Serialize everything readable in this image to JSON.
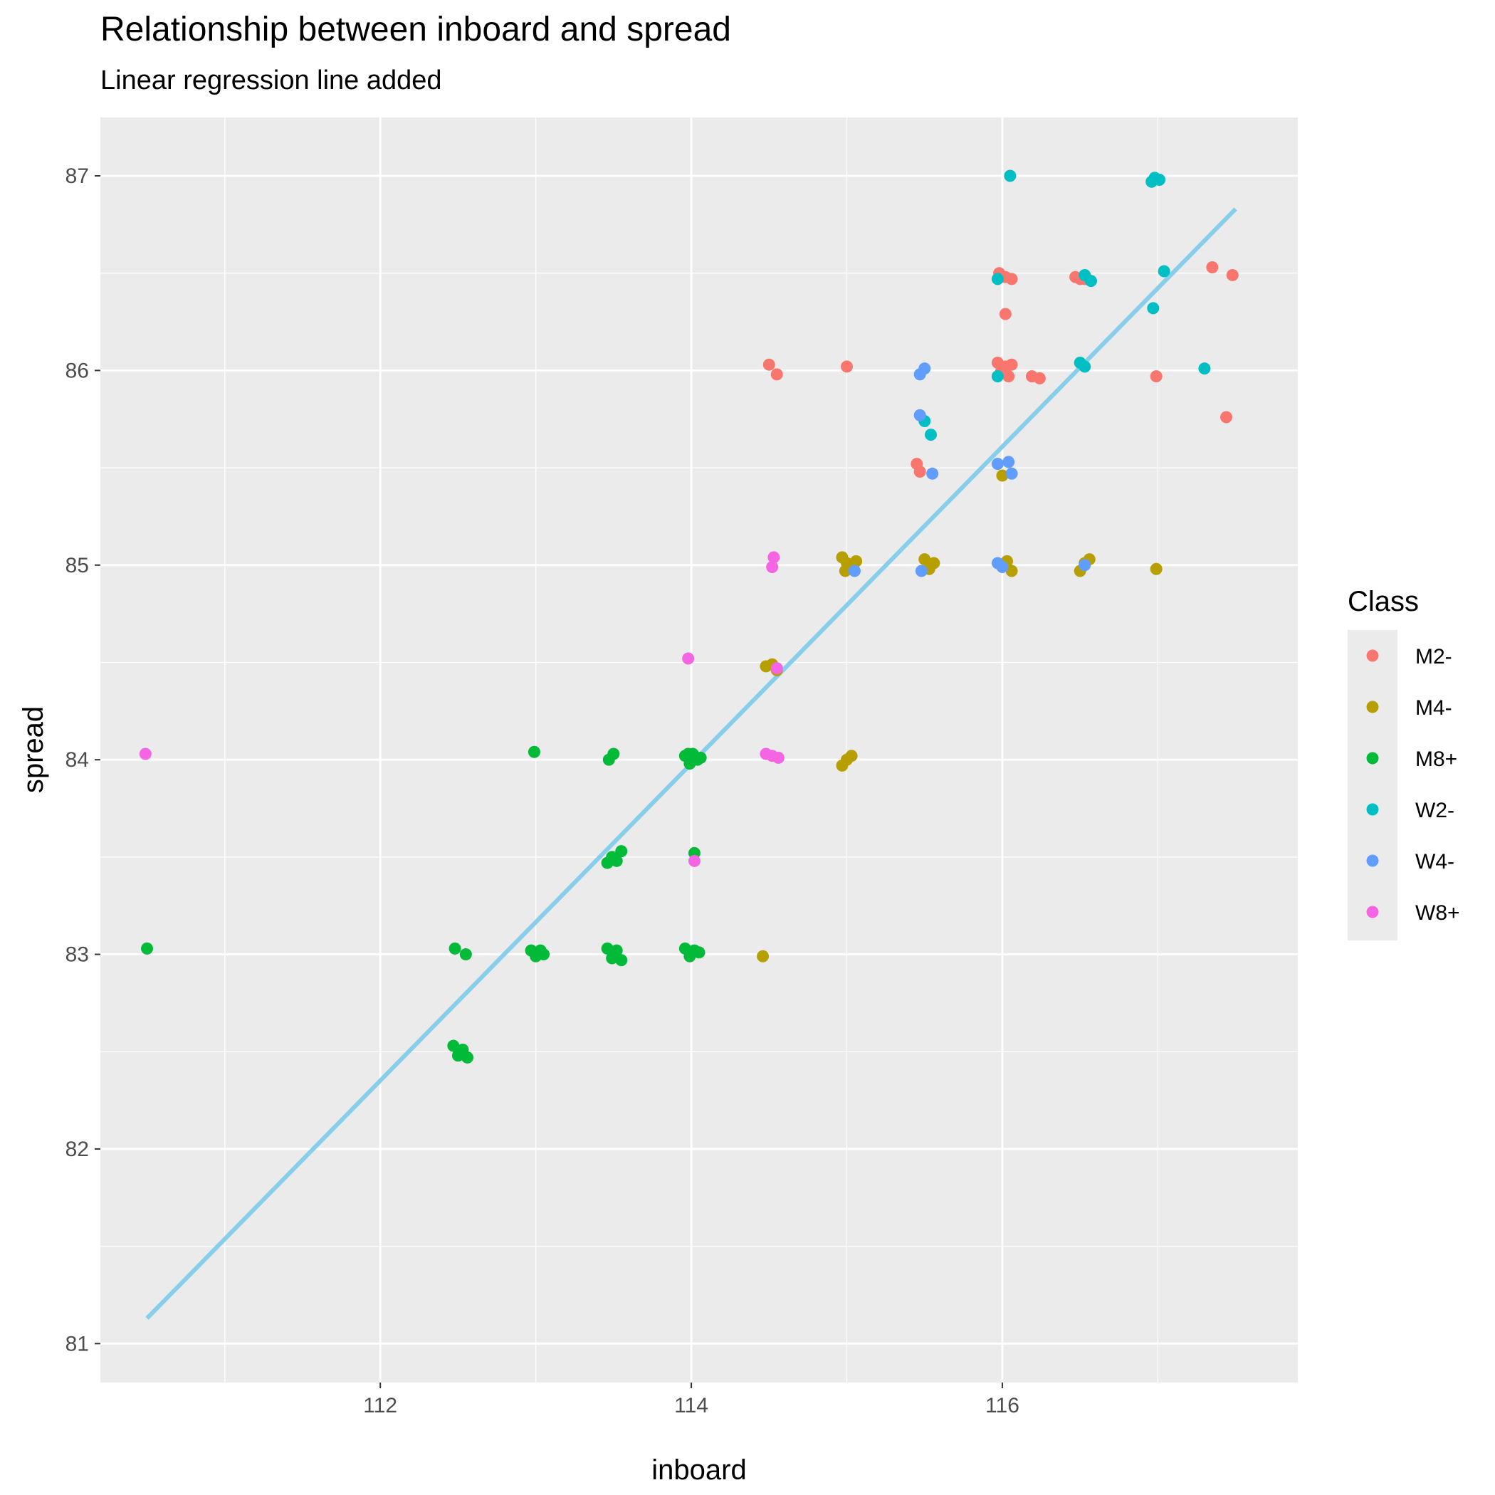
{
  "chart_data": {
    "type": "scatter",
    "title": "Relationship between inboard and spread",
    "subtitle": "Linear regression line added",
    "xlabel": "inboard",
    "ylabel": "spread",
    "xlim": [
      110.2,
      117.9
    ],
    "ylim": [
      80.8,
      87.3
    ],
    "x_ticks": [
      112,
      114,
      116
    ],
    "y_ticks": [
      81,
      82,
      83,
      84,
      85,
      86,
      87
    ],
    "grid": true,
    "legend": {
      "title": "Class",
      "position": "right"
    },
    "regression_line": {
      "color": "#87CEEB",
      "x": [
        110.5,
        117.5
      ],
      "y": [
        81.13,
        86.83
      ]
    },
    "series": [
      {
        "name": "M2-",
        "color": "#F8766D",
        "points": [
          [
            114.5,
            86.03
          ],
          [
            114.55,
            85.98
          ],
          [
            115.0,
            86.02
          ],
          [
            115.45,
            85.52
          ],
          [
            115.47,
            85.48
          ],
          [
            115.98,
            86.5
          ],
          [
            116.02,
            86.48
          ],
          [
            116.06,
            86.47
          ],
          [
            116.02,
            86.29
          ],
          [
            115.97,
            86.04
          ],
          [
            116.02,
            86.02
          ],
          [
            116.06,
            86.03
          ],
          [
            115.99,
            85.99
          ],
          [
            116.04,
            85.97
          ],
          [
            116.19,
            85.97
          ],
          [
            116.24,
            85.96
          ],
          [
            116.47,
            86.48
          ],
          [
            116.5,
            86.47
          ],
          [
            116.53,
            86.47
          ],
          [
            116.99,
            85.97
          ],
          [
            117.35,
            86.53
          ],
          [
            117.48,
            86.49
          ],
          [
            117.44,
            85.76
          ]
        ]
      },
      {
        "name": "M4-",
        "color": "#B79F00",
        "points": [
          [
            114.48,
            84.48
          ],
          [
            114.52,
            84.49
          ],
          [
            114.55,
            84.46
          ],
          [
            114.46,
            82.99
          ],
          [
            114.97,
            85.04
          ],
          [
            115.0,
            85.01
          ],
          [
            115.03,
            84.98
          ],
          [
            115.06,
            85.02
          ],
          [
            114.99,
            84.97
          ],
          [
            114.97,
            83.97
          ],
          [
            115.0,
            84.0
          ],
          [
            115.03,
            84.02
          ],
          [
            115.5,
            85.03
          ],
          [
            115.53,
            84.98
          ],
          [
            115.56,
            85.01
          ],
          [
            116.03,
            85.02
          ],
          [
            116.0,
            85.46
          ],
          [
            116.06,
            84.97
          ],
          [
            116.5,
            84.97
          ],
          [
            116.53,
            85.01
          ],
          [
            116.56,
            85.03
          ],
          [
            116.99,
            84.98
          ]
        ]
      },
      {
        "name": "M8+",
        "color": "#00BA38",
        "points": [
          [
            110.5,
            83.03
          ],
          [
            112.47,
            82.53
          ],
          [
            112.5,
            82.48
          ],
          [
            112.53,
            82.51
          ],
          [
            112.56,
            82.47
          ],
          [
            112.48,
            83.03
          ],
          [
            112.55,
            83.0
          ],
          [
            112.97,
            83.02
          ],
          [
            113.0,
            82.99
          ],
          [
            113.03,
            83.02
          ],
          [
            113.05,
            83.0
          ],
          [
            112.99,
            84.04
          ],
          [
            113.46,
            83.47
          ],
          [
            113.49,
            83.5
          ],
          [
            113.52,
            83.48
          ],
          [
            113.55,
            83.53
          ],
          [
            113.47,
            84.0
          ],
          [
            113.5,
            84.03
          ],
          [
            113.46,
            83.03
          ],
          [
            113.49,
            82.98
          ],
          [
            113.52,
            83.02
          ],
          [
            113.55,
            82.97
          ],
          [
            113.96,
            84.02
          ],
          [
            113.99,
            83.98
          ],
          [
            114.01,
            84.03
          ],
          [
            114.04,
            84.0
          ],
          [
            114.06,
            84.01
          ],
          [
            113.98,
            84.03
          ],
          [
            114.02,
            83.52
          ],
          [
            113.96,
            83.03
          ],
          [
            113.99,
            82.99
          ],
          [
            114.02,
            83.02
          ],
          [
            114.05,
            83.01
          ]
        ]
      },
      {
        "name": "W2-",
        "color": "#00BFC4",
        "points": [
          [
            116.05,
            87.0
          ],
          [
            116.98,
            86.99
          ],
          [
            117.01,
            86.98
          ],
          [
            116.96,
            86.97
          ],
          [
            115.97,
            86.47
          ],
          [
            116.53,
            86.49
          ],
          [
            116.57,
            86.46
          ],
          [
            117.04,
            86.51
          ],
          [
            116.97,
            86.32
          ],
          [
            115.97,
            85.97
          ],
          [
            116.5,
            86.04
          ],
          [
            116.53,
            86.02
          ],
          [
            117.3,
            86.01
          ],
          [
            115.5,
            85.74
          ],
          [
            115.54,
            85.67
          ]
        ]
      },
      {
        "name": "W4-",
        "color": "#619CFF",
        "points": [
          [
            115.47,
            85.98
          ],
          [
            115.5,
            86.01
          ],
          [
            115.47,
            85.77
          ],
          [
            115.55,
            85.47
          ],
          [
            115.97,
            85.52
          ],
          [
            116.04,
            85.53
          ],
          [
            116.06,
            85.47
          ],
          [
            115.48,
            84.97
          ],
          [
            115.97,
            85.01
          ],
          [
            116.0,
            84.99
          ],
          [
            116.53,
            85.0
          ],
          [
            115.05,
            84.97
          ]
        ]
      },
      {
        "name": "W8+",
        "color": "#F564E3",
        "points": [
          [
            110.49,
            84.03
          ],
          [
            113.98,
            84.52
          ],
          [
            114.02,
            83.48
          ],
          [
            114.53,
            85.04
          ],
          [
            114.52,
            84.99
          ],
          [
            114.55,
            84.47
          ],
          [
            114.48,
            84.03
          ],
          [
            114.52,
            84.02
          ],
          [
            114.56,
            84.01
          ]
        ]
      }
    ]
  }
}
